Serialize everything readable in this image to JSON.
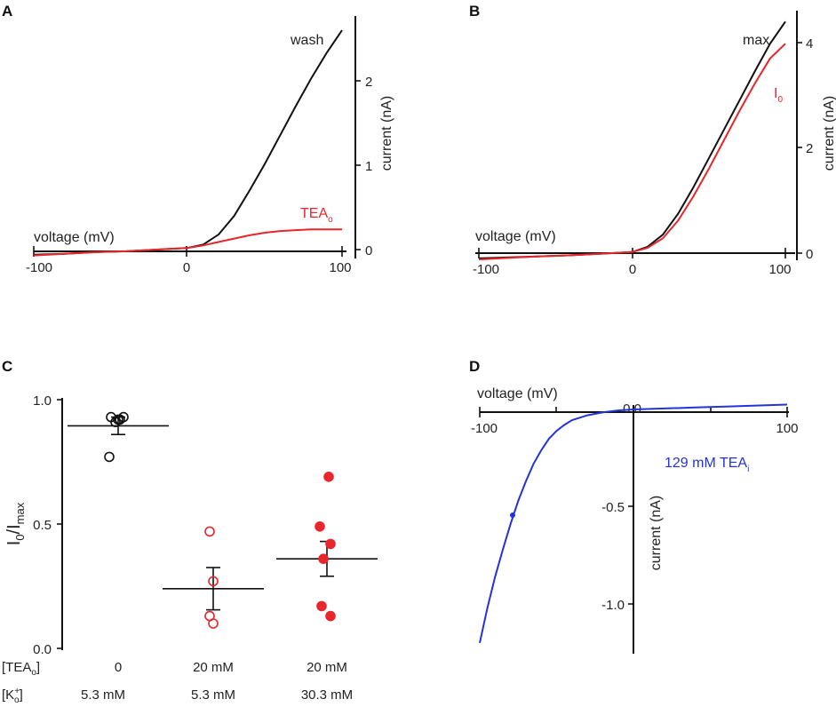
{
  "colors": {
    "black": "#111111",
    "red": "#e8262b",
    "blue": "#2433d6"
  },
  "chart_data": [
    {
      "panel": "A",
      "type": "line",
      "xlabel": "voltage (mV)",
      "ylabel": "current (nA)",
      "xlim": [
        -100,
        100
      ],
      "ylim": [
        -0.1,
        2.7
      ],
      "xticks": [
        "-100",
        "0",
        "100"
      ],
      "yticks": [
        "0",
        "1",
        "2"
      ],
      "series": [
        {
          "name": "wash",
          "label": "wash",
          "color": "#111111",
          "x": [
            -100,
            -80,
            -60,
            -40,
            -20,
            0,
            10,
            20,
            30,
            40,
            50,
            60,
            70,
            80,
            90,
            100
          ],
          "y": [
            -0.06,
            -0.05,
            -0.03,
            -0.02,
            0.0,
            0.02,
            0.06,
            0.18,
            0.4,
            0.7,
            1.02,
            1.36,
            1.7,
            2.03,
            2.33,
            2.6
          ]
        },
        {
          "name": "TEAo",
          "label": "TEA",
          "label_sub": "o",
          "color": "#e8262b",
          "x": [
            -100,
            -80,
            -60,
            -40,
            -20,
            0,
            10,
            20,
            30,
            40,
            50,
            60,
            70,
            80,
            90,
            100
          ],
          "y": [
            -0.07,
            -0.05,
            -0.03,
            -0.02,
            0.0,
            0.02,
            0.05,
            0.09,
            0.13,
            0.17,
            0.2,
            0.22,
            0.23,
            0.24,
            0.24,
            0.24
          ]
        }
      ]
    },
    {
      "panel": "B",
      "type": "line",
      "xlabel": "voltage (mV)",
      "ylabel": "current (nA)",
      "xlim": [
        -100,
        100
      ],
      "ylim": [
        -0.15,
        4.6
      ],
      "xticks": [
        "-100",
        "0",
        "100"
      ],
      "yticks": [
        "0",
        "2",
        "4"
      ],
      "series": [
        {
          "name": "max",
          "label": "max",
          "color": "#111111",
          "x": [
            -100,
            -80,
            -60,
            -40,
            -20,
            0,
            10,
            20,
            30,
            40,
            50,
            60,
            70,
            80,
            90,
            100
          ],
          "y": [
            -0.1,
            -0.08,
            -0.06,
            -0.04,
            -0.01,
            0.02,
            0.12,
            0.35,
            0.75,
            1.25,
            1.8,
            2.35,
            2.9,
            3.45,
            3.98,
            4.4
          ]
        },
        {
          "name": "I0",
          "label": "I",
          "label_sub": "0",
          "color": "#e8262b",
          "x": [
            -100,
            -80,
            -60,
            -40,
            -20,
            0,
            10,
            20,
            30,
            40,
            50,
            60,
            70,
            80,
            90,
            100
          ],
          "y": [
            -0.12,
            -0.09,
            -0.06,
            -0.04,
            -0.01,
            0.02,
            0.1,
            0.28,
            0.62,
            1.08,
            1.6,
            2.15,
            2.7,
            3.22,
            3.7,
            3.98
          ]
        }
      ]
    },
    {
      "panel": "C",
      "type": "scatter",
      "ylabel_main": "I",
      "ylabel_sub0": "0",
      "ylabel_div": "/I",
      "ylabel_sub1": "max",
      "ylim": [
        0,
        1.0
      ],
      "yticks": [
        "0.0",
        "0.5",
        "1.0"
      ],
      "row_labels": [
        {
          "main": "[TEA",
          "sub": "o",
          "end": "]"
        },
        {
          "main": "[K",
          "sup": "+",
          "sub": "o",
          "end": "]"
        }
      ],
      "groups": [
        {
          "tea": "0",
          "k": "5.3 mM",
          "mean": 0.895,
          "err_low": 0.86,
          "err_high": 0.93,
          "marker": "open",
          "color": "#111111",
          "points": [
            0.93,
            0.92,
            0.91,
            0.93,
            0.92,
            0.77
          ]
        },
        {
          "tea": "20 mM",
          "k": "5.3 mM",
          "mean": 0.24,
          "err_low": 0.155,
          "err_high": 0.325,
          "marker": "open",
          "color": "#e8262b",
          "points": [
            0.47,
            0.27,
            0.13,
            0.1
          ]
        },
        {
          "tea": "20 mM",
          "k": "30.3 mM",
          "mean": 0.36,
          "err_low": 0.29,
          "err_high": 0.43,
          "marker": "filled",
          "color": "#e8262b",
          "points": [
            0.69,
            0.49,
            0.42,
            0.36,
            0.17,
            0.13
          ]
        }
      ]
    },
    {
      "panel": "D",
      "type": "line",
      "xlabel": "voltage (mV)",
      "ylabel": "current (nA)",
      "xlim": [
        -100,
        100
      ],
      "ylim": [
        -1.25,
        0.05
      ],
      "xticks": [
        "-100",
        "0",
        "100"
      ],
      "yticks": [
        "0.0",
        "-0.5",
        "-1.0"
      ],
      "series": [
        {
          "name": "129 mM TEAi",
          "label": "129 mM TEA",
          "label_sub": "i",
          "color": "#2433d6",
          "x": [
            -100,
            -95,
            -90,
            -85,
            -80,
            -75,
            -70,
            -65,
            -60,
            -55,
            -50,
            -45,
            -40,
            -30,
            -20,
            -10,
            0,
            20,
            40,
            60,
            80,
            100
          ],
          "y": [
            -1.2,
            -1.02,
            -0.86,
            -0.72,
            -0.59,
            -0.47,
            -0.37,
            -0.28,
            -0.21,
            -0.15,
            -0.11,
            -0.08,
            -0.055,
            -0.03,
            -0.015,
            -0.005,
            0.0,
            0.005,
            0.01,
            0.015,
            0.02,
            0.025
          ]
        }
      ]
    }
  ]
}
